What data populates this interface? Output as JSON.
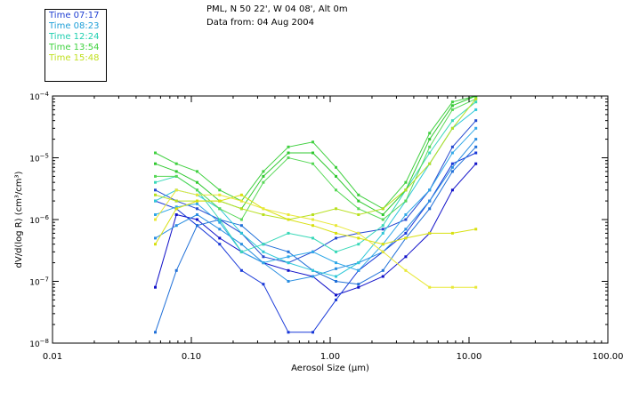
{
  "header": {
    "station": "PML, N 50 22', W 04 08', Alt 0m",
    "date_line": "Data from: 04 Aug 2004"
  },
  "chart_data": {
    "type": "line",
    "title": "PML, N 50 22', W 04 08', Alt 0m",
    "subtitle": "Data from: 04 Aug 2004",
    "xlabel": "Aerosol Size (μm)",
    "ylabel": "dV/d(log R) (cm³/cm³)",
    "x_scale": "log",
    "y_scale": "log",
    "xlim": [
      0.01,
      100
    ],
    "ylim": [
      1e-08,
      0.0001
    ],
    "x_ticks": [
      {
        "value": 0.01,
        "label": "0.01"
      },
      {
        "value": 0.1,
        "label": "0.10"
      },
      {
        "value": 1,
        "label": "1.00"
      },
      {
        "value": 10,
        "label": "10.00"
      },
      {
        "value": 100,
        "label": "100.00"
      }
    ],
    "y_ticks": [
      {
        "value": 1e-08,
        "base": "10",
        "exp": "−8"
      },
      {
        "value": 1e-07,
        "base": "10",
        "exp": "−7"
      },
      {
        "value": 1e-06,
        "base": "10",
        "exp": "−6"
      },
      {
        "value": 1e-05,
        "base": "10",
        "exp": "−5"
      },
      {
        "value": 0.0001,
        "base": "10",
        "exp": "−4"
      }
    ],
    "x": [
      0.055,
      0.078,
      0.11,
      0.16,
      0.23,
      0.33,
      0.5,
      0.75,
      1.1,
      1.6,
      2.4,
      3.5,
      5.2,
      7.6,
      11.2
    ],
    "legend": [
      {
        "label": "Time 07:17",
        "color": "#1f3fd2"
      },
      {
        "label": "Time 08:23",
        "color": "#1f9fd8"
      },
      {
        "label": "Time 12:24",
        "color": "#1fcfb0"
      },
      {
        "label": "Time 13:54",
        "color": "#3fd23f"
      },
      {
        "label": "Time 15:48",
        "color": "#c0e020"
      }
    ],
    "series": [
      {
        "name": "07:17 a",
        "color": "#1010c8",
        "values": [
          8e-08,
          1.2e-06,
          1e-06,
          5e-07,
          3e-07,
          2e-07,
          1.5e-07,
          1.2e-07,
          6e-08,
          8e-08,
          1.2e-07,
          2.5e-07,
          6e-07,
          3e-06,
          8e-06
        ]
      },
      {
        "name": "07:17 b",
        "color": "#1838d8",
        "values": [
          2e-06,
          1.5e-06,
          8e-07,
          4e-07,
          1.5e-07,
          9e-08,
          1.5e-08,
          1.5e-08,
          5e-08,
          1.5e-07,
          3e-07,
          6e-07,
          2e-06,
          8e-06,
          1.2e-05
        ]
      },
      {
        "name": "07:17 c",
        "color": "#2448d0",
        "values": [
          3e-06,
          2e-06,
          1.5e-06,
          1e-06,
          6e-07,
          2.5e-07,
          2e-07,
          3e-07,
          5e-07,
          6e-07,
          7e-07,
          1e-06,
          3e-06,
          1.5e-05,
          4e-05
        ]
      },
      {
        "name": "08:23 a",
        "color": "#2070d8",
        "values": [
          1.5e-08,
          1.5e-07,
          8e-07,
          1e-06,
          8e-07,
          4e-07,
          3e-07,
          1.5e-07,
          1e-07,
          9e-08,
          1.5e-07,
          5e-07,
          1.5e-06,
          6e-06,
          1.5e-05
        ]
      },
      {
        "name": "08:23 b",
        "color": "#2a8ee0",
        "values": [
          5e-07,
          8e-07,
          1.2e-06,
          7e-07,
          4e-07,
          2e-07,
          1e-07,
          1.2e-07,
          1.6e-07,
          2e-07,
          3e-07,
          7e-07,
          2e-06,
          7e-06,
          2e-05
        ]
      },
      {
        "name": "08:23 c",
        "color": "#30a8e8",
        "values": [
          1.2e-06,
          1.6e-06,
          1.8e-06,
          9e-07,
          3e-07,
          2e-07,
          2.5e-07,
          3e-07,
          2e-07,
          1.5e-07,
          4e-07,
          1.2e-06,
          3e-06,
          1.2e-05,
          3e-05
        ]
      },
      {
        "name": "12:24 a",
        "color": "#30c8d8",
        "values": [
          2e-06,
          3e-06,
          2.5e-06,
          1.5e-06,
          6e-07,
          3e-07,
          2e-07,
          1.5e-07,
          1.2e-07,
          2e-07,
          6e-07,
          2e-06,
          8e-06,
          3e-05,
          6e-05
        ]
      },
      {
        "name": "12:24 b",
        "color": "#38d8b8",
        "values": [
          4e-06,
          5e-06,
          3e-06,
          1e-06,
          3e-07,
          4e-07,
          6e-07,
          5e-07,
          3e-07,
          4e-07,
          8e-07,
          3e-06,
          1.2e-05,
          4e-05,
          8e-05
        ]
      },
      {
        "name": "13:54 a",
        "color": "#40d040",
        "values": [
          1.2e-05,
          8e-06,
          6e-06,
          3e-06,
          2e-06,
          6e-06,
          1.5e-05,
          1.8e-05,
          7e-06,
          2.5e-06,
          1.5e-06,
          4e-06,
          2.5e-05,
          8e-05,
          0.0001
        ]
      },
      {
        "name": "13:54 b",
        "color": "#30c830",
        "values": [
          8e-06,
          6e-06,
          4e-06,
          2e-06,
          1.5e-06,
          5e-06,
          1.2e-05,
          1.2e-05,
          5e-06,
          2e-06,
          1.2e-06,
          3e-06,
          2e-05,
          7e-05,
          0.0001
        ]
      },
      {
        "name": "13:54 c",
        "color": "#58d858",
        "values": [
          5e-06,
          5e-06,
          3e-06,
          1.5e-06,
          1e-06,
          4e-06,
          1e-05,
          8e-06,
          3e-06,
          1.5e-06,
          1e-06,
          2e-06,
          1.5e-05,
          6e-05,
          9e-05
        ]
      },
      {
        "name": "15:48 a",
        "color": "#b8e020",
        "values": [
          2.5e-06,
          2e-06,
          2e-06,
          2e-06,
          1.5e-06,
          1.2e-06,
          1e-06,
          1.2e-06,
          1.5e-06,
          1.2e-06,
          1.5e-06,
          3e-06,
          8e-06,
          3e-05,
          9e-05
        ]
      },
      {
        "name": "15:48 b",
        "color": "#d8e010",
        "values": [
          4e-07,
          1.5e-06,
          2e-06,
          2e-06,
          2.5e-06,
          1.5e-06,
          1e-06,
          8e-07,
          6e-07,
          5e-07,
          4e-07,
          5e-07,
          6e-07,
          6e-07,
          7e-07
        ]
      },
      {
        "name": "15:48 c",
        "color": "#e8e838",
        "values": [
          1e-06,
          3e-06,
          2.5e-06,
          2.5e-06,
          2e-06,
          1.5e-06,
          1.2e-06,
          1e-06,
          8e-07,
          6e-07,
          3e-07,
          1.5e-07,
          8e-08,
          8e-08,
          8e-08
        ]
      }
    ]
  }
}
